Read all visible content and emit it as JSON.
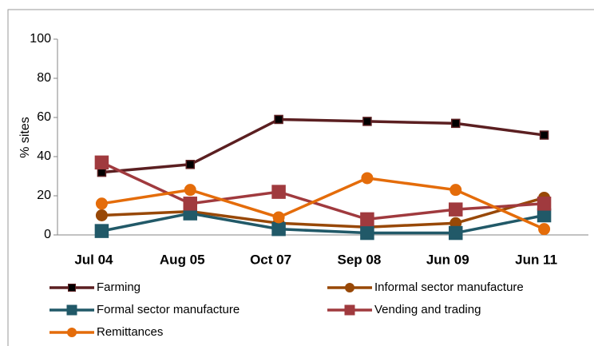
{
  "chart_data": {
    "type": "line",
    "y_label": "% sites",
    "categories": [
      "Jul 04",
      "Aug 05",
      "Oct 07",
      "Sep 08",
      "Jun 09",
      "Jun 11"
    ],
    "series": [
      {
        "name": "Farming",
        "color": "#5b1f21",
        "marker": "square",
        "marker_color": "#000000",
        "values": [
          32,
          36,
          59,
          58,
          57,
          51
        ]
      },
      {
        "name": "Informal sector manufacture",
        "color": "#984807",
        "marker": "circle",
        "marker_color": "#984807",
        "values": [
          10,
          12,
          6,
          4,
          6,
          19
        ]
      },
      {
        "name": "Formal sector manufacture",
        "color": "#215968",
        "marker": "square",
        "marker_color": "#215968",
        "values": [
          2,
          11,
          3,
          1,
          1,
          10
        ]
      },
      {
        "name": "Vending and trading",
        "color": "#a03a3e",
        "marker": "square",
        "marker_color": "#a03a3e",
        "values": [
          37,
          16,
          22,
          8,
          13,
          16
        ]
      },
      {
        "name": "Remittances",
        "color": "#e46c0a",
        "marker": "circle",
        "marker_color": "#e46c0a",
        "values": [
          16,
          23,
          9,
          29,
          23,
          3
        ]
      }
    ],
    "ylim": [
      0,
      100
    ],
    "yticks": [
      0,
      20,
      40,
      60,
      80,
      100
    ],
    "grid": false
  }
}
